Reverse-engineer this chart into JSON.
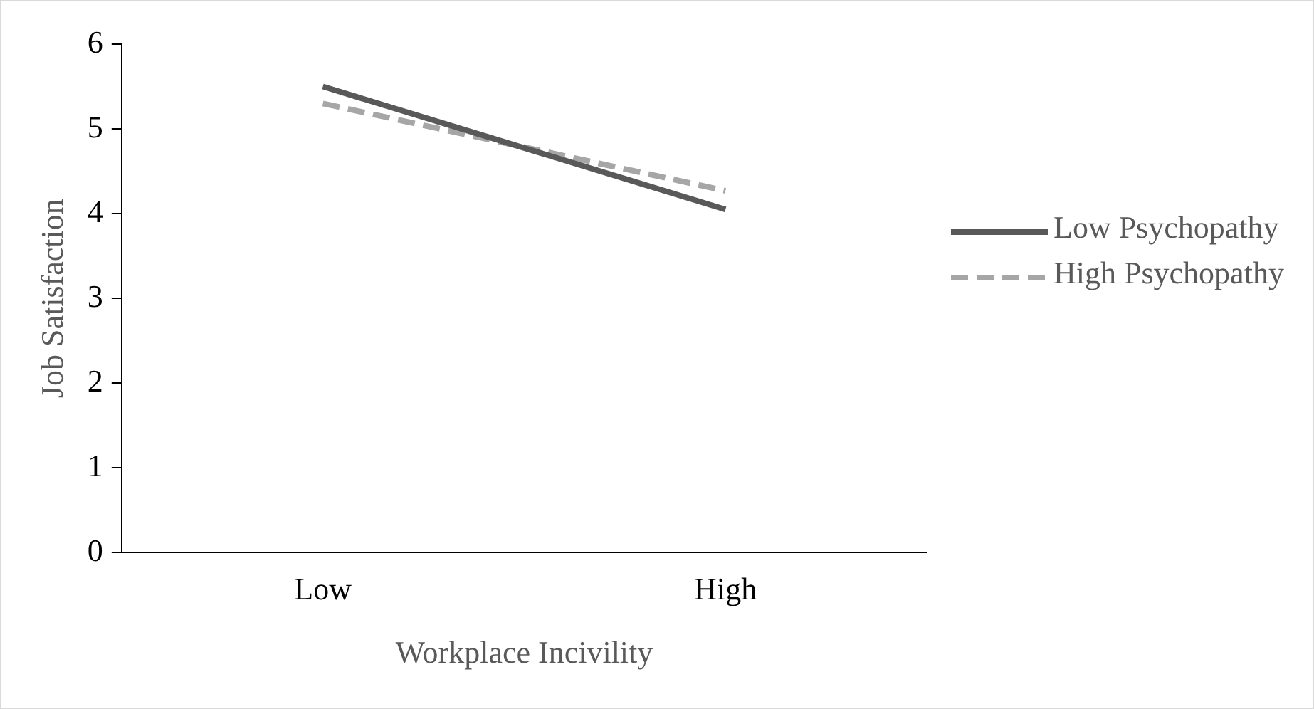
{
  "chart_data": {
    "type": "line",
    "xlabel": "Workplace Incivility",
    "ylabel": "Job Satisfaction",
    "categories": [
      "Low",
      "High"
    ],
    "series": [
      {
        "name": "Low Psychopathy",
        "color": "#595959",
        "line_style": "solid",
        "values": [
          5.5,
          4.05
        ]
      },
      {
        "name": "High Psychopathy",
        "color": "#a6a6a6",
        "line_style": "dashed",
        "values": [
          5.3,
          4.27
        ]
      }
    ],
    "ylim": [
      0,
      6
    ],
    "yticks": [
      0,
      1,
      2,
      3,
      4,
      5,
      6
    ],
    "grid": false,
    "legend": "right",
    "marker": "none"
  }
}
